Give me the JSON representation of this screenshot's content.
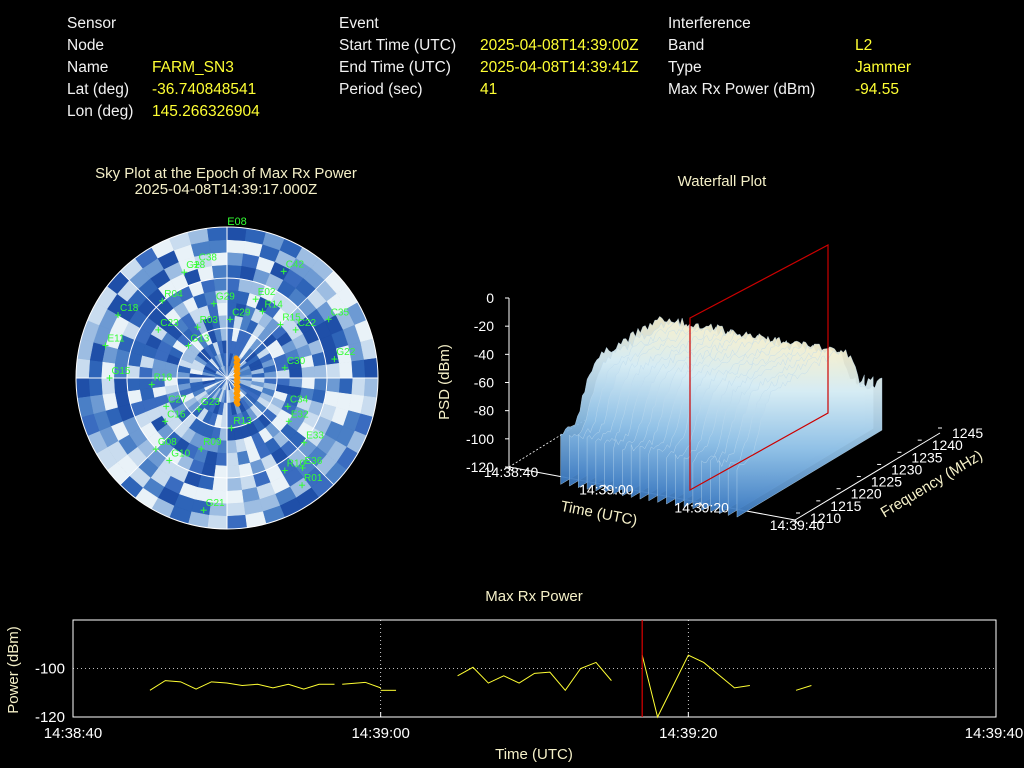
{
  "header": {
    "sensor": {
      "heading": "Sensor Node",
      "name_label": "Name",
      "name": "FARM_SN3",
      "lat_label": "Lat (deg)",
      "lat": "-36.740848541",
      "lon_label": "Lon (deg)",
      "lon": "145.266326904"
    },
    "event": {
      "heading": "Event",
      "start_label": "Start Time (UTC)",
      "start": "2025-04-08T14:39:00Z",
      "end_label": "End Time (UTC)",
      "end": "2025-04-08T14:39:41Z",
      "period_label": "Period (sec)",
      "period": "41"
    },
    "interference": {
      "heading": "Interference",
      "band_label": "Band",
      "band": "L2",
      "type_label": "Type",
      "type": "Jammer",
      "maxrx_label": "Max Rx Power (dBm)",
      "maxrx": "-94.55"
    }
  },
  "chart_data": [
    {
      "type": "scatter",
      "title": "Sky Plot at the Epoch of Max Rx Power",
      "subtitle": "2025-04-08T14:39:17.000Z",
      "projection": "polar-azimuth-elevation",
      "top_label": "E08",
      "satellites": [
        {
          "id": "E08",
          "az": 0,
          "el": 90
        },
        {
          "id": "C38",
          "az": 345,
          "el": 20
        },
        {
          "id": "G28",
          "az": 338,
          "el": 22
        },
        {
          "id": "C42",
          "az": 28,
          "el": 18
        },
        {
          "id": "E02",
          "az": 20,
          "el": 40
        },
        {
          "id": "R14",
          "az": 28,
          "el": 45
        },
        {
          "id": "G29",
          "az": 350,
          "el": 45
        },
        {
          "id": "R15",
          "az": 45,
          "el": 45
        },
        {
          "id": "C22",
          "az": 55,
          "el": 40
        },
        {
          "id": "C35",
          "az": 60,
          "el": 20
        },
        {
          "id": "G22",
          "az": 80,
          "el": 25
        },
        {
          "id": "C30",
          "az": 80,
          "el": 55
        },
        {
          "id": "E33",
          "az": 130,
          "el": 30
        },
        {
          "id": "E32",
          "az": 125,
          "el": 45
        },
        {
          "id": "C34",
          "az": 115,
          "el": 50
        },
        {
          "id": "E36",
          "az": 140,
          "el": 20
        },
        {
          "id": "R01",
          "az": 145,
          "el": 12
        },
        {
          "id": "R10",
          "az": 148,
          "el": 25
        },
        {
          "id": "R13",
          "az": 175,
          "el": 60
        },
        {
          "id": "G21",
          "az": 190,
          "el": 10
        },
        {
          "id": "R09",
          "az": 200,
          "el": 45
        },
        {
          "id": "G10",
          "az": 215,
          "el": 30
        },
        {
          "id": "G08",
          "az": 225,
          "el": 30
        },
        {
          "id": "C16",
          "az": 235,
          "el": 45
        },
        {
          "id": "C27",
          "az": 245,
          "el": 50
        },
        {
          "id": "R18",
          "az": 265,
          "el": 45
        },
        {
          "id": "G15",
          "az": 270,
          "el": 20
        },
        {
          "id": "E11",
          "az": 285,
          "el": 15
        },
        {
          "id": "C18",
          "az": 300,
          "el": 15
        },
        {
          "id": "C23",
          "az": 305,
          "el": 40
        },
        {
          "id": "R03",
          "az": 330,
          "el": 55
        },
        {
          "id": "R04",
          "az": 320,
          "el": 30
        },
        {
          "id": "C29",
          "az": 3,
          "el": 55
        },
        {
          "id": "G23",
          "az": 222,
          "el": 65
        },
        {
          "id": "G13",
          "az": 310,
          "el": 60
        }
      ],
      "track_color": "#ff9900"
    },
    {
      "type": "area",
      "title": "Waterfall Plot",
      "xlabel": "Time (UTC)",
      "ylabel": "Frequency (MHz)",
      "zlabel": "PSD (dBm)",
      "x_ticks": [
        "14:38:40",
        "14:39:00",
        "14:39:20",
        "14:39:40"
      ],
      "y_ticks": [
        "1210",
        "1215",
        "1220",
        "1225",
        "1230",
        "1235",
        "1240",
        "1245"
      ],
      "z_ticks": [
        "0",
        "-20",
        "-40",
        "-60",
        "-80",
        "-100",
        "-120"
      ],
      "zlim": [
        -120,
        0
      ],
      "marker_time": "14:39:17",
      "marker_color": "#cc0000"
    },
    {
      "type": "line",
      "title": "Max Rx Power",
      "xlabel": "Time (UTC)",
      "ylabel": "Power (dBm)",
      "x_ticks": [
        "14:38:40",
        "14:39:00",
        "14:39:20",
        "14:39:40"
      ],
      "y_ticks": [
        "-100",
        "-120"
      ],
      "xlim": [
        0,
        60
      ],
      "ylim": [
        -120,
        -80
      ],
      "grid": true,
      "line_color": "#ffff33",
      "marker_color": "#dd0000",
      "marker_t": 37,
      "segments": [
        [
          [
            5,
            -109
          ],
          [
            6,
            -105
          ],
          [
            7,
            -105.5
          ],
          [
            8,
            -108.5
          ],
          [
            9,
            -105.5
          ],
          [
            10,
            -106
          ],
          [
            11,
            -107
          ],
          [
            12,
            -106.5
          ],
          [
            13,
            -108
          ],
          [
            14,
            -106.5
          ],
          [
            15,
            -108.5
          ],
          [
            16,
            -106.5
          ],
          [
            17,
            -106.5
          ]
        ],
        [
          [
            17.5,
            -106.5
          ],
          [
            19,
            -105.7
          ],
          [
            20,
            -108
          ]
        ],
        [
          [
            20,
            -109
          ],
          [
            21,
            -109
          ]
        ],
        [
          [
            25,
            -103
          ],
          [
            26,
            -99.5
          ],
          [
            27,
            -106
          ],
          [
            28,
            -103
          ],
          [
            29,
            -106
          ],
          [
            30,
            -102
          ],
          [
            31,
            -101.5
          ],
          [
            32,
            -109
          ],
          [
            33,
            -100
          ],
          [
            34,
            -97.5
          ],
          [
            35,
            -105
          ]
        ],
        [
          [
            37,
            -94.5
          ],
          [
            38,
            -120
          ],
          [
            40,
            -94.5
          ],
          [
            41,
            -97.5
          ],
          [
            43,
            -108
          ],
          [
            44,
            -107
          ]
        ],
        [
          [
            47,
            -109
          ],
          [
            48,
            -107
          ]
        ]
      ]
    }
  ]
}
